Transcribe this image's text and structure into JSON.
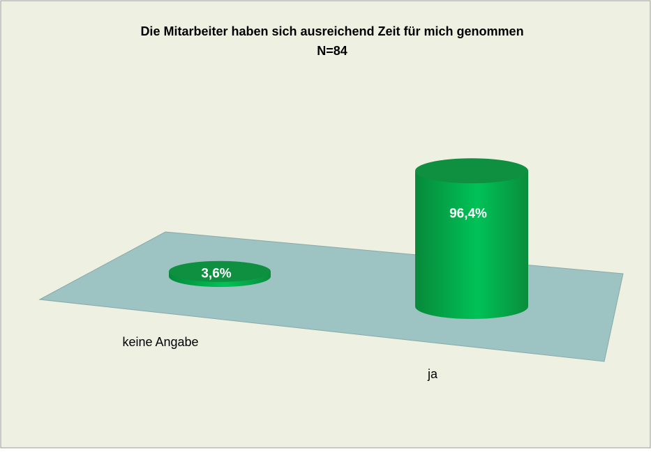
{
  "chart_data": {
    "type": "bar3d",
    "title": "Die Mitarbeiter haben sich ausreichend Zeit für mich genommen",
    "subtitle": "N=84",
    "categories": [
      "keine Angabe",
      "ja"
    ],
    "values": [
      3.6,
      96.4
    ],
    "value_labels": [
      "3,6%",
      "96,4%"
    ],
    "color": "#00b34a"
  }
}
